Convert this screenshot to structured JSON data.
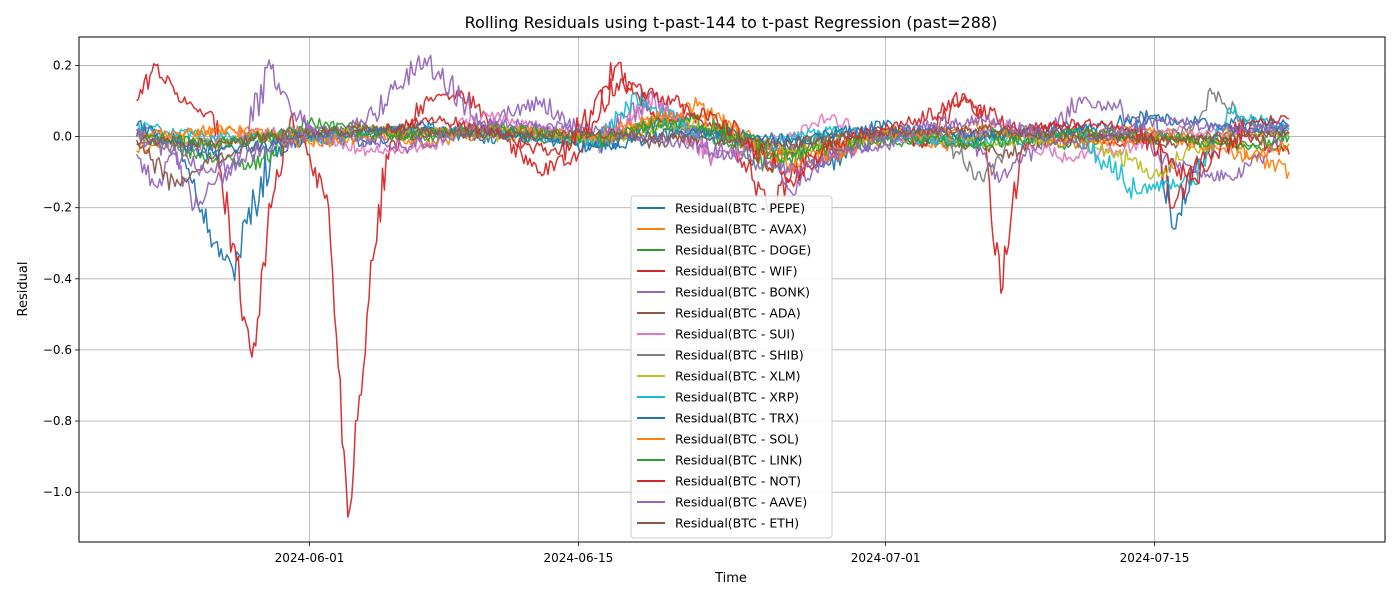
{
  "chart_data": {
    "type": "line",
    "title": "Rolling Residuals using t-past-144 to t-past Regression (past=288)",
    "xlabel": "Time",
    "ylabel": "Residual",
    "xlim": [
      "2024-05-20",
      "2024-07-27"
    ],
    "ylim": [
      -1.14,
      0.28
    ],
    "x_ticks": [
      "2024-06-01",
      "2024-06-15",
      "2024-07-01",
      "2024-07-15"
    ],
    "y_ticks": [
      0.2,
      0.0,
      -0.2,
      -0.4,
      -0.6,
      -0.8,
      -1.0
    ],
    "y_tick_labels": [
      "0.2",
      "0.0",
      "−0.2",
      "−0.4",
      "−0.6",
      "−0.8",
      "−1.0"
    ],
    "grid": true,
    "legend_position": "lower-center",
    "series": [
      {
        "name": "Residual(BTC - PEPE)",
        "color": "#1f77b4",
        "x": [
          "2024-05-23",
          "2024-05-25",
          "2024-05-26",
          "2024-05-27",
          "2024-05-28",
          "2024-05-30",
          "2024-06-01",
          "2024-06-04",
          "2024-06-07",
          "2024-06-10",
          "2024-06-13",
          "2024-06-16",
          "2024-06-19",
          "2024-06-22",
          "2024-06-25",
          "2024-06-28",
          "2024-07-01",
          "2024-07-04",
          "2024-07-07",
          "2024-07-10",
          "2024-07-13",
          "2024-07-15",
          "2024-07-16",
          "2024-07-17",
          "2024-07-19",
          "2024-07-22"
        ],
        "y": [
          0.02,
          0.0,
          -0.12,
          -0.3,
          -0.37,
          -0.05,
          0.0,
          -0.02,
          0.03,
          -0.01,
          0.02,
          -0.03,
          0.04,
          0.01,
          -0.02,
          -0.08,
          0.01,
          -0.02,
          0.01,
          0.03,
          0.0,
          0.05,
          -0.26,
          -0.1,
          0.05,
          0.03
        ]
      },
      {
        "name": "Residual(BTC - AVAX)",
        "color": "#ff7f0e",
        "x": [
          "2024-05-23",
          "2024-05-26",
          "2024-05-29",
          "2024-06-01",
          "2024-06-04",
          "2024-06-07",
          "2024-06-10",
          "2024-06-13",
          "2024-06-16",
          "2024-06-19",
          "2024-06-22",
          "2024-06-25",
          "2024-06-28",
          "2024-07-01",
          "2024-07-04",
          "2024-07-07",
          "2024-07-10",
          "2024-07-13",
          "2024-07-16",
          "2024-07-19",
          "2024-07-22"
        ],
        "y": [
          -0.04,
          0.01,
          0.02,
          -0.01,
          0.03,
          -0.02,
          0.01,
          0.02,
          -0.01,
          0.05,
          0.06,
          -0.04,
          -0.06,
          0.02,
          -0.03,
          0.01,
          0.0,
          0.02,
          0.01,
          -0.02,
          -0.1
        ]
      },
      {
        "name": "Residual(BTC - DOGE)",
        "color": "#2ca02c",
        "x": [
          "2024-05-23",
          "2024-05-26",
          "2024-05-29",
          "2024-06-01",
          "2024-06-04",
          "2024-06-07",
          "2024-06-10",
          "2024-06-13",
          "2024-06-16",
          "2024-06-19",
          "2024-06-22",
          "2024-06-25",
          "2024-06-28",
          "2024-07-01",
          "2024-07-04",
          "2024-07-07",
          "2024-07-10",
          "2024-07-13",
          "2024-07-16",
          "2024-07-19",
          "2024-07-22"
        ],
        "y": [
          0.01,
          -0.05,
          -0.08,
          0.04,
          0.02,
          -0.01,
          0.03,
          0.0,
          -0.02,
          0.04,
          0.01,
          -0.09,
          0.01,
          -0.02,
          -0.01,
          0.02,
          -0.03,
          0.01,
          0.0,
          -0.02,
          -0.04
        ]
      },
      {
        "name": "Residual(BTC - WIF)",
        "color": "#d62728",
        "x": [
          "2024-05-23",
          "2024-05-24",
          "2024-05-25",
          "2024-05-26",
          "2024-05-27",
          "2024-05-28",
          "2024-05-29",
          "2024-05-30",
          "2024-05-31",
          "2024-06-01",
          "2024-06-02",
          "2024-06-03",
          "2024-06-04",
          "2024-06-05",
          "2024-06-07",
          "2024-06-09",
          "2024-06-11",
          "2024-06-13",
          "2024-06-15",
          "2024-06-17",
          "2024-06-19",
          "2024-06-21",
          "2024-06-23",
          "2024-06-25",
          "2024-06-27",
          "2024-06-29",
          "2024-07-01",
          "2024-07-03",
          "2024-07-05",
          "2024-07-06",
          "2024-07-07",
          "2024-07-08",
          "2024-07-09",
          "2024-07-11",
          "2024-07-13",
          "2024-07-15",
          "2024-07-16",
          "2024-07-17",
          "2024-07-19",
          "2024-07-22"
        ],
        "y": [
          0.1,
          0.2,
          0.12,
          0.08,
          0.06,
          -0.3,
          -0.62,
          -0.2,
          0.05,
          -0.05,
          -0.2,
          -1.07,
          -0.5,
          -0.05,
          0.1,
          0.12,
          0.0,
          -0.1,
          -0.05,
          0.2,
          0.05,
          0.06,
          0.0,
          -0.2,
          -0.05,
          0.0,
          0.02,
          -0.02,
          0.12,
          0.05,
          -0.44,
          -0.05,
          0.03,
          0.02,
          -0.02,
          0.0,
          -0.2,
          -0.1,
          0.03,
          -0.05
        ]
      },
      {
        "name": "Residual(BTC - BONK)",
        "color": "#9467bd",
        "x": [
          "2024-05-23",
          "2024-05-24",
          "2024-05-25",
          "2024-05-26",
          "2024-05-28",
          "2024-05-30",
          "2024-05-31",
          "2024-06-02",
          "2024-06-04",
          "2024-06-07",
          "2024-06-10",
          "2024-06-13",
          "2024-06-16",
          "2024-06-19",
          "2024-06-22",
          "2024-06-25",
          "2024-06-26",
          "2024-06-28",
          "2024-07-01",
          "2024-07-04",
          "2024-07-07",
          "2024-07-09",
          "2024-07-11",
          "2024-07-13",
          "2024-07-16",
          "2024-07-19",
          "2024-07-20",
          "2024-07-22"
        ],
        "y": [
          -0.05,
          -0.14,
          -0.05,
          -0.2,
          -0.08,
          0.19,
          0.08,
          -0.02,
          0.05,
          0.22,
          0.04,
          0.1,
          -0.02,
          0.12,
          -0.05,
          -0.03,
          -0.15,
          -0.05,
          -0.02,
          0.05,
          -0.12,
          -0.03,
          0.1,
          0.08,
          -0.08,
          -0.12,
          -0.08,
          0.02
        ]
      },
      {
        "name": "Residual(BTC - ADA)",
        "color": "#8c564b",
        "x": [
          "2024-05-23",
          "2024-05-25",
          "2024-05-26",
          "2024-05-27",
          "2024-05-29",
          "2024-06-01",
          "2024-06-04",
          "2024-06-07",
          "2024-06-10",
          "2024-06-13",
          "2024-06-16",
          "2024-06-19",
          "2024-06-22",
          "2024-06-25",
          "2024-06-28",
          "2024-07-01",
          "2024-07-04",
          "2024-07-07",
          "2024-07-10",
          "2024-07-13",
          "2024-07-16",
          "2024-07-19",
          "2024-07-22"
        ],
        "y": [
          -0.02,
          -0.14,
          -0.1,
          -0.06,
          -0.03,
          0.01,
          0.03,
          0.0,
          0.02,
          -0.01,
          0.01,
          -0.02,
          0.02,
          -0.05,
          0.0,
          0.02,
          0.0,
          -0.05,
          -0.01,
          0.0,
          -0.02,
          0.01,
          0.01
        ]
      },
      {
        "name": "Residual(BTC - SUI)",
        "color": "#e377c2",
        "x": [
          "2024-05-23",
          "2024-05-26",
          "2024-05-29",
          "2024-06-01",
          "2024-06-04",
          "2024-06-07",
          "2024-06-10",
          "2024-06-13",
          "2024-06-16",
          "2024-06-19",
          "2024-06-22",
          "2024-06-25",
          "2024-06-28",
          "2024-07-01",
          "2024-07-04",
          "2024-07-07",
          "2024-07-10",
          "2024-07-13",
          "2024-07-16",
          "2024-07-19",
          "2024-07-22"
        ],
        "y": [
          0.02,
          -0.03,
          0.01,
          0.02,
          -0.04,
          -0.03,
          0.06,
          0.03,
          -0.02,
          0.1,
          -0.06,
          -0.02,
          0.05,
          0.0,
          -0.02,
          0.03,
          -0.06,
          -0.04,
          0.02,
          0.01,
          0.02
        ]
      },
      {
        "name": "Residual(BTC - SHIB)",
        "color": "#7f7f7f",
        "x": [
          "2024-05-23",
          "2024-05-26",
          "2024-05-29",
          "2024-06-01",
          "2024-06-04",
          "2024-06-07",
          "2024-06-10",
          "2024-06-13",
          "2024-06-16",
          "2024-06-19",
          "2024-06-22",
          "2024-06-25",
          "2024-06-28",
          "2024-07-01",
          "2024-07-04",
          "2024-07-06",
          "2024-07-08",
          "2024-07-11",
          "2024-07-14",
          "2024-07-17",
          "2024-07-18",
          "2024-07-20",
          "2024-07-22"
        ],
        "y": [
          0.0,
          -0.04,
          0.0,
          0.01,
          0.02,
          0.01,
          0.01,
          0.0,
          -0.01,
          0.03,
          0.01,
          -0.04,
          0.0,
          0.01,
          0.0,
          -0.12,
          0.02,
          0.0,
          0.0,
          0.02,
          0.12,
          0.03,
          0.01
        ]
      },
      {
        "name": "Residual(BTC - XLM)",
        "color": "#bcbd22",
        "x": [
          "2024-05-23",
          "2024-05-27",
          "2024-06-01",
          "2024-06-06",
          "2024-06-11",
          "2024-06-16",
          "2024-06-21",
          "2024-06-26",
          "2024-07-01",
          "2024-07-06",
          "2024-07-11",
          "2024-07-15",
          "2024-07-19",
          "2024-07-22"
        ],
        "y": [
          0.0,
          -0.02,
          0.01,
          0.02,
          0.0,
          -0.01,
          0.04,
          -0.04,
          0.01,
          -0.02,
          0.0,
          -0.1,
          0.01,
          0.0
        ]
      },
      {
        "name": "Residual(BTC - XRP)",
        "color": "#17becf",
        "x": [
          "2024-05-23",
          "2024-05-27",
          "2024-06-01",
          "2024-06-06",
          "2024-06-11",
          "2024-06-16",
          "2024-06-18",
          "2024-06-21",
          "2024-06-25",
          "2024-06-28",
          "2024-07-01",
          "2024-07-06",
          "2024-07-11",
          "2024-07-14",
          "2024-07-17",
          "2024-07-19",
          "2024-07-22"
        ],
        "y": [
          0.03,
          0.0,
          -0.01,
          0.02,
          0.01,
          -0.02,
          0.12,
          0.0,
          -0.02,
          0.02,
          0.0,
          -0.02,
          0.01,
          -0.15,
          -0.12,
          0.07,
          0.02
        ]
      },
      {
        "name": "Residual(BTC - TRX)",
        "color": "#1f77b4",
        "x": [
          "2024-05-23",
          "2024-05-27",
          "2024-06-01",
          "2024-06-06",
          "2024-06-11",
          "2024-06-16",
          "2024-06-21",
          "2024-06-26",
          "2024-07-01",
          "2024-07-06",
          "2024-07-11",
          "2024-07-15",
          "2024-07-19",
          "2024-07-22"
        ],
        "y": [
          0.03,
          -0.05,
          0.0,
          0.02,
          0.01,
          -0.03,
          0.02,
          -0.01,
          0.03,
          0.0,
          0.02,
          0.06,
          0.02,
          0.03
        ]
      },
      {
        "name": "Residual(BTC - SOL)",
        "color": "#ff7f0e",
        "x": [
          "2024-05-23",
          "2024-05-27",
          "2024-06-01",
          "2024-06-06",
          "2024-06-11",
          "2024-06-16",
          "2024-06-21",
          "2024-06-26",
          "2024-07-01",
          "2024-07-06",
          "2024-07-11",
          "2024-07-16",
          "2024-07-20",
          "2024-07-22"
        ],
        "y": [
          0.0,
          0.02,
          -0.02,
          0.01,
          0.02,
          0.0,
          0.08,
          -0.08,
          0.0,
          0.03,
          -0.02,
          0.0,
          -0.06,
          -0.02
        ]
      },
      {
        "name": "Residual(BTC - LINK)",
        "color": "#2ca02c",
        "x": [
          "2024-05-23",
          "2024-05-27",
          "2024-06-01",
          "2024-06-06",
          "2024-06-11",
          "2024-06-16",
          "2024-06-21",
          "2024-06-26",
          "2024-07-01",
          "2024-07-06",
          "2024-07-11",
          "2024-07-16",
          "2024-07-20",
          "2024-07-22"
        ],
        "y": [
          0.0,
          -0.02,
          0.02,
          0.0,
          0.03,
          -0.01,
          0.05,
          -0.06,
          0.0,
          -0.02,
          0.01,
          -0.01,
          -0.03,
          0.0
        ]
      },
      {
        "name": "Residual(BTC - NOT)",
        "color": "#d62728",
        "x": [
          "2024-06-05",
          "2024-06-08",
          "2024-06-11",
          "2024-06-14",
          "2024-06-17",
          "2024-06-20",
          "2024-06-23",
          "2024-06-26",
          "2024-06-29",
          "2024-07-02",
          "2024-07-05",
          "2024-07-08",
          "2024-07-11",
          "2024-07-14",
          "2024-07-17",
          "2024-07-20",
          "2024-07-22"
        ],
        "y": [
          0.02,
          0.05,
          0.0,
          -0.05,
          0.15,
          0.1,
          0.02,
          -0.12,
          0.0,
          0.03,
          0.1,
          0.02,
          0.04,
          0.02,
          -0.12,
          0.04,
          0.05
        ]
      },
      {
        "name": "Residual(BTC - AAVE)",
        "color": "#9467bd",
        "x": [
          "2024-05-23",
          "2024-05-27",
          "2024-06-01",
          "2024-06-06",
          "2024-06-11",
          "2024-06-16",
          "2024-06-21",
          "2024-06-26",
          "2024-07-01",
          "2024-07-06",
          "2024-07-11",
          "2024-07-15",
          "2024-07-19",
          "2024-07-22"
        ],
        "y": [
          0.0,
          -0.1,
          0.02,
          -0.03,
          0.04,
          0.02,
          -0.02,
          -0.1,
          0.0,
          0.05,
          -0.02,
          0.05,
          0.02,
          0.03
        ]
      },
      {
        "name": "Residual(BTC - ETH)",
        "color": "#8c564b",
        "x": [
          "2024-05-23",
          "2024-05-27",
          "2024-06-01",
          "2024-06-06",
          "2024-06-11",
          "2024-06-16",
          "2024-06-21",
          "2024-06-26",
          "2024-07-01",
          "2024-07-06",
          "2024-07-11",
          "2024-07-16",
          "2024-07-20",
          "2024-07-22"
        ],
        "y": [
          -0.01,
          -0.02,
          0.01,
          0.02,
          0.0,
          0.01,
          -0.01,
          -0.02,
          0.01,
          0.02,
          0.0,
          -0.01,
          0.0,
          0.01
        ]
      }
    ]
  }
}
